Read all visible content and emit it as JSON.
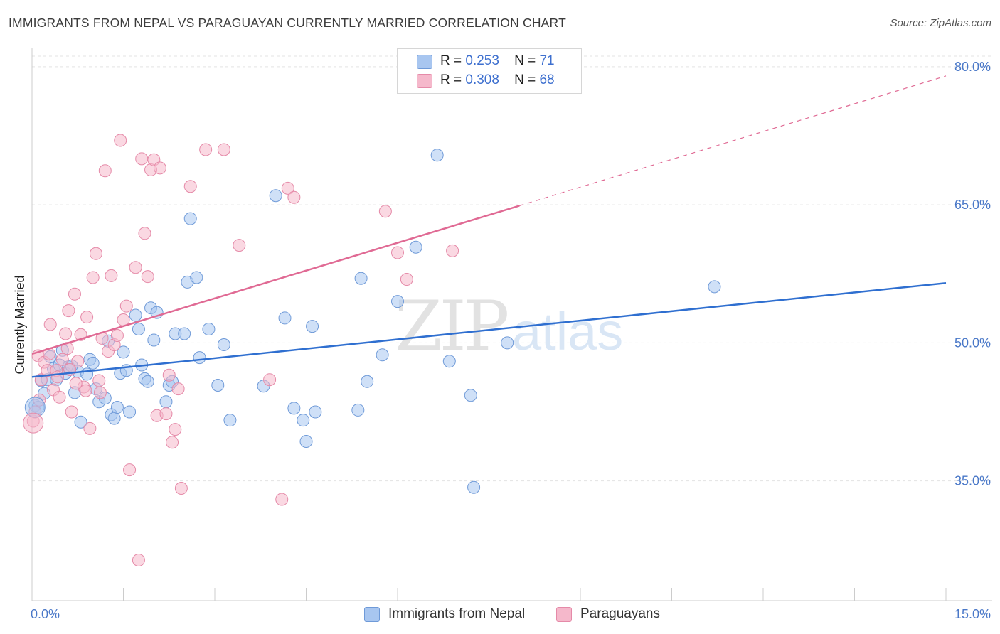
{
  "title": "IMMIGRANTS FROM NEPAL VS PARAGUAYAN CURRENTLY MARRIED CORRELATION CHART",
  "source": "Source: ZipAtlas.com",
  "watermark": {
    "zip": "ZIP",
    "atlas": "atlas"
  },
  "legend": {
    "r_label": "R =",
    "n_label": "N =",
    "items": [
      {
        "r": "0.253",
        "n": "71",
        "color": "#a8c6f0"
      },
      {
        "r": "0.308",
        "n": "68",
        "color": "#f5b8cb"
      }
    ]
  },
  "bottom_legend": [
    "Immigrants from Nepal",
    "Paraguayans"
  ],
  "chart_data": {
    "type": "scatter",
    "ylabel": "Currently Married",
    "xlabel": "",
    "xlim": [
      0,
      15
    ],
    "ylim": [
      22,
      82
    ],
    "x_tick_labels": [
      "0.0%",
      "15.0%"
    ],
    "y_tick_labels": [
      "80.0%",
      "65.0%",
      "50.0%",
      "35.0%"
    ],
    "y_ticks": [
      80,
      65,
      50,
      35
    ],
    "grid": true,
    "colors": {
      "nepal_fill": "#a8c6f0",
      "nepal_stroke": "#6f9ad8",
      "nepal_line": "#2f6fd0",
      "para_fill": "#f5b8cb",
      "para_stroke": "#e58aa8",
      "para_line": "#e06a94"
    },
    "series": [
      {
        "name": "Immigrants from Nepal",
        "trend": {
          "x0": 0,
          "y0": 46.3,
          "x1": 15,
          "y1": 56.5
        },
        "points": [
          [
            0.05,
            43.2
          ],
          [
            0.1,
            43.0
          ],
          [
            0.15,
            45.9
          ],
          [
            0.25,
            46.0
          ],
          [
            0.3,
            48.5
          ],
          [
            0.35,
            47.2
          ],
          [
            0.4,
            46.0
          ],
          [
            0.45,
            47.6
          ],
          [
            0.5,
            49.2
          ],
          [
            0.55,
            46.7
          ],
          [
            0.6,
            47.4
          ],
          [
            0.7,
            44.6
          ],
          [
            0.75,
            46.9
          ],
          [
            0.8,
            41.4
          ],
          [
            0.9,
            46.6
          ],
          [
            0.95,
            48.2
          ],
          [
            1.0,
            47.8
          ],
          [
            1.1,
            43.6
          ],
          [
            1.2,
            44.0
          ],
          [
            1.25,
            50.2
          ],
          [
            1.3,
            42.2
          ],
          [
            1.35,
            41.8
          ],
          [
            1.4,
            43.0
          ],
          [
            1.45,
            46.7
          ],
          [
            1.5,
            49.0
          ],
          [
            1.55,
            47.0
          ],
          [
            1.6,
            42.5
          ],
          [
            1.7,
            53.0
          ],
          [
            1.75,
            51.5
          ],
          [
            1.8,
            47.6
          ],
          [
            1.85,
            46.1
          ],
          [
            1.9,
            45.8
          ],
          [
            1.95,
            53.8
          ],
          [
            2.0,
            50.3
          ],
          [
            2.05,
            53.3
          ],
          [
            2.2,
            43.6
          ],
          [
            2.25,
            45.4
          ],
          [
            2.3,
            45.8
          ],
          [
            2.35,
            51.0
          ],
          [
            2.5,
            51.0
          ],
          [
            2.55,
            56.6
          ],
          [
            2.6,
            63.5
          ],
          [
            2.7,
            57.1
          ],
          [
            2.75,
            48.4
          ],
          [
            2.9,
            51.5
          ],
          [
            3.05,
            45.4
          ],
          [
            3.15,
            49.8
          ],
          [
            3.25,
            41.6
          ],
          [
            3.8,
            45.3
          ],
          [
            4.0,
            66.0
          ],
          [
            4.15,
            52.7
          ],
          [
            4.3,
            42.9
          ],
          [
            4.45,
            41.6
          ],
          [
            4.6,
            51.8
          ],
          [
            4.65,
            42.5
          ],
          [
            4.5,
            39.3
          ],
          [
            5.35,
            42.7
          ],
          [
            5.4,
            57.0
          ],
          [
            5.5,
            45.8
          ],
          [
            5.75,
            48.7
          ],
          [
            6.0,
            54.5
          ],
          [
            6.3,
            60.4
          ],
          [
            6.65,
            70.4
          ],
          [
            6.85,
            48.0
          ],
          [
            7.2,
            44.3
          ],
          [
            7.25,
            34.3
          ],
          [
            7.8,
            50.0
          ],
          [
            11.2,
            56.1
          ],
          [
            0.2,
            44.5
          ],
          [
            0.65,
            47.5
          ],
          [
            1.05,
            45.0
          ]
        ]
      },
      {
        "name": "Paraguayans",
        "trend": {
          "x0": 0,
          "y0": 48.8,
          "x1": 8.0,
          "y1": 64.9
        },
        "trend_dashed_to": {
          "x": 15,
          "y": 79.0
        },
        "points": [
          [
            0.02,
            41.5
          ],
          [
            0.05,
            42.5
          ],
          [
            0.1,
            48.6
          ],
          [
            0.15,
            46.0
          ],
          [
            0.2,
            47.9
          ],
          [
            0.25,
            47.0
          ],
          [
            0.3,
            52.0
          ],
          [
            0.35,
            44.9
          ],
          [
            0.4,
            47.0
          ],
          [
            0.45,
            44.1
          ],
          [
            0.5,
            48.2
          ],
          [
            0.55,
            51.0
          ],
          [
            0.6,
            53.5
          ],
          [
            0.65,
            42.5
          ],
          [
            0.7,
            55.3
          ],
          [
            0.75,
            48.0
          ],
          [
            0.8,
            50.9
          ],
          [
            0.85,
            45.2
          ],
          [
            0.9,
            52.8
          ],
          [
            0.95,
            40.7
          ],
          [
            1.0,
            57.1
          ],
          [
            1.05,
            59.7
          ],
          [
            1.1,
            45.9
          ],
          [
            1.15,
            50.5
          ],
          [
            1.2,
            68.7
          ],
          [
            1.25,
            49.1
          ],
          [
            1.3,
            57.3
          ],
          [
            1.35,
            49.8
          ],
          [
            1.4,
            50.8
          ],
          [
            1.45,
            72.0
          ],
          [
            1.5,
            52.5
          ],
          [
            1.55,
            54.0
          ],
          [
            1.6,
            36.2
          ],
          [
            1.7,
            58.2
          ],
          [
            1.75,
            26.4
          ],
          [
            1.8,
            70.0
          ],
          [
            1.85,
            61.9
          ],
          [
            1.9,
            57.2
          ],
          [
            1.95,
            68.8
          ],
          [
            2.0,
            69.9
          ],
          [
            2.05,
            42.1
          ],
          [
            2.1,
            69.0
          ],
          [
            2.2,
            42.3
          ],
          [
            2.25,
            46.5
          ],
          [
            2.3,
            39.2
          ],
          [
            2.35,
            40.6
          ],
          [
            2.4,
            45.0
          ],
          [
            2.45,
            34.2
          ],
          [
            2.6,
            67.0
          ],
          [
            2.85,
            71.0
          ],
          [
            3.15,
            71.0
          ],
          [
            3.4,
            60.6
          ],
          [
            3.9,
            46.0
          ],
          [
            4.1,
            33.0
          ],
          [
            4.2,
            66.8
          ],
          [
            4.3,
            65.8
          ],
          [
            5.8,
            64.3
          ],
          [
            6.0,
            59.8
          ],
          [
            6.15,
            56.9
          ],
          [
            6.9,
            60.0
          ],
          [
            0.12,
            43.8
          ],
          [
            0.28,
            48.8
          ],
          [
            0.42,
            46.3
          ],
          [
            0.58,
            49.4
          ],
          [
            0.72,
            45.6
          ],
          [
            0.88,
            44.8
          ],
          [
            1.12,
            44.6
          ],
          [
            0.62,
            47.1
          ]
        ]
      }
    ]
  }
}
